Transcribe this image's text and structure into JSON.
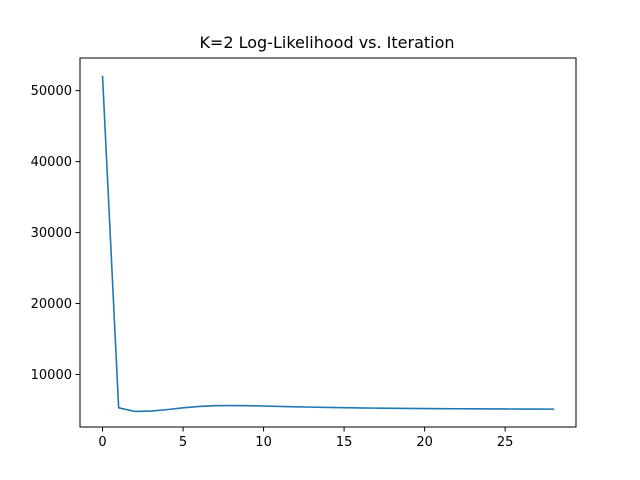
{
  "chart_data": {
    "type": "line",
    "title": "K=2 Log-Likelihood vs. Iteration",
    "xlabel": "",
    "ylabel": "",
    "xlim": [
      -1.4,
      29.4
    ],
    "ylim": [
      2600,
      54600
    ],
    "xticks": [
      0,
      5,
      10,
      15,
      20,
      25
    ],
    "yticks": [
      10000,
      20000,
      30000,
      40000,
      50000
    ],
    "grid": false,
    "legend": "none",
    "series": [
      {
        "color": "#1f77b4",
        "x": [
          0,
          1,
          2,
          3,
          4,
          5,
          6,
          7,
          8,
          9,
          10,
          11,
          12,
          13,
          14,
          15,
          16,
          17,
          18,
          19,
          20,
          21,
          22,
          23,
          24,
          25,
          26,
          27,
          28
        ],
        "y": [
          52000,
          5300,
          4800,
          4850,
          5050,
          5300,
          5500,
          5600,
          5620,
          5600,
          5560,
          5500,
          5450,
          5400,
          5360,
          5320,
          5290,
          5260,
          5240,
          5220,
          5200,
          5185,
          5170,
          5160,
          5150,
          5140,
          5130,
          5125,
          5120
        ]
      }
    ]
  },
  "colors": {
    "line": "#1f77b4",
    "axes": "#000000",
    "background": "#ffffff"
  }
}
